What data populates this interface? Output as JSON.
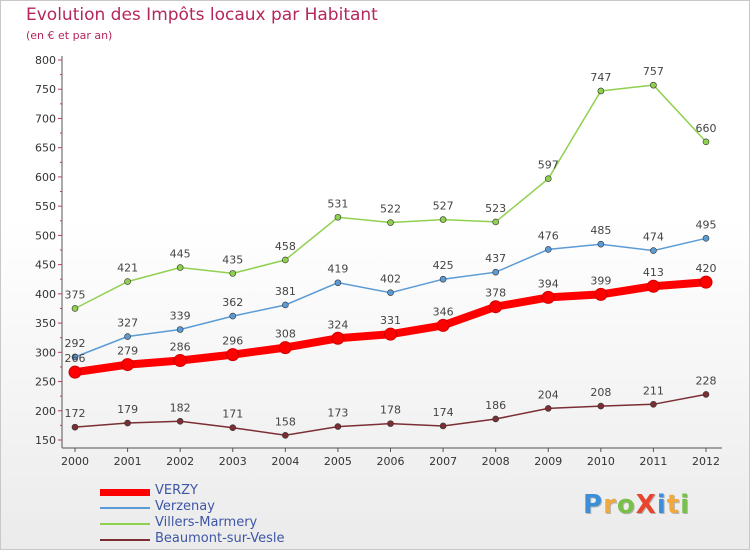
{
  "title": "Evolution des Impôts locaux par Habitant",
  "subtitle": "(en € et par an)",
  "logo": {
    "text": "ProXiti",
    "letters": [
      {
        "ch": "P",
        "color": "#3a8fd8"
      },
      {
        "ch": "r",
        "color": "#f2a93b"
      },
      {
        "ch": "o",
        "color": "#78c04a"
      },
      {
        "ch": "X",
        "color": "#e8452c"
      },
      {
        "ch": "i",
        "color": "#3a8fd8"
      },
      {
        "ch": "t",
        "color": "#f2a93b"
      },
      {
        "ch": "i",
        "color": "#78c04a"
      }
    ]
  },
  "chart_data": {
    "type": "line",
    "title": "Evolution des Impôts locaux par Habitant",
    "subtitle": "(en € et par an)",
    "xlabel": "",
    "ylabel": "",
    "x": [
      "2000",
      "2001",
      "2002",
      "2003",
      "2004",
      "2005",
      "2006",
      "2007",
      "2008",
      "2009",
      "2010",
      "2011",
      "2012"
    ],
    "ylim": [
      150,
      800
    ],
    "yticks": [
      150,
      200,
      250,
      300,
      350,
      400,
      450,
      500,
      550,
      600,
      650,
      700,
      750,
      800
    ],
    "grid": false,
    "legend_position": "bottom-left",
    "series": [
      {
        "name": "Villers-Marmery",
        "color": "#8fd14f",
        "values": [
          375,
          421,
          445,
          435,
          458,
          531,
          522,
          527,
          523,
          597,
          747,
          757,
          660
        ],
        "thick": false
      },
      {
        "name": "Verzenay",
        "color": "#5b9bd5",
        "values": [
          292,
          327,
          339,
          362,
          381,
          419,
          402,
          425,
          437,
          476,
          485,
          474,
          495
        ],
        "thick": false
      },
      {
        "name": "Beaumont-sur-Vesle",
        "color": "#7b2e34",
        "values": [
          172,
          179,
          182,
          171,
          158,
          173,
          178,
          174,
          186,
          204,
          208,
          211,
          228
        ],
        "thick": false
      },
      {
        "name": "VERZY",
        "color": "#ff0000",
        "values": [
          266,
          279,
          286,
          296,
          308,
          324,
          331,
          346,
          378,
          394,
          399,
          413,
          420
        ],
        "thick": true
      }
    ],
    "legend_order": [
      "VERZY",
      "Verzenay",
      "Villers-Marmery",
      "Beaumont-sur-Vesle"
    ]
  }
}
